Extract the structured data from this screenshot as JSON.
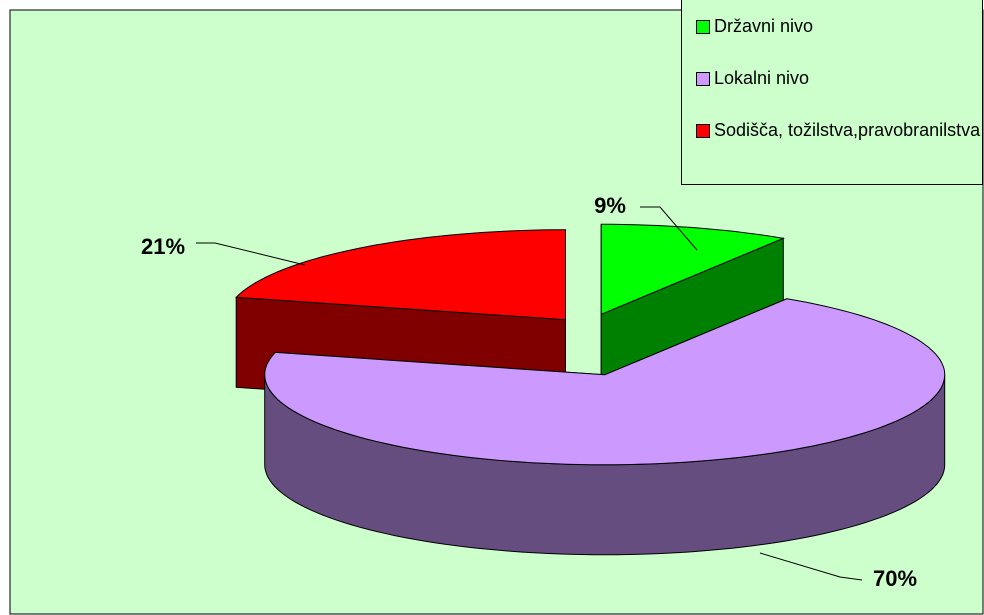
{
  "chart_data": {
    "type": "pie3d",
    "categories": [
      "Državni nivo",
      "Lokalni nivo",
      "Sodišča, tožilstva,pravobranilstva"
    ],
    "values": [
      9,
      70,
      21
    ],
    "value_labels": [
      "9%",
      "70%",
      "21%"
    ],
    "colors": [
      "#00ff00",
      "#cc99ff",
      "#ff0000"
    ],
    "legend": "top-right"
  }
}
